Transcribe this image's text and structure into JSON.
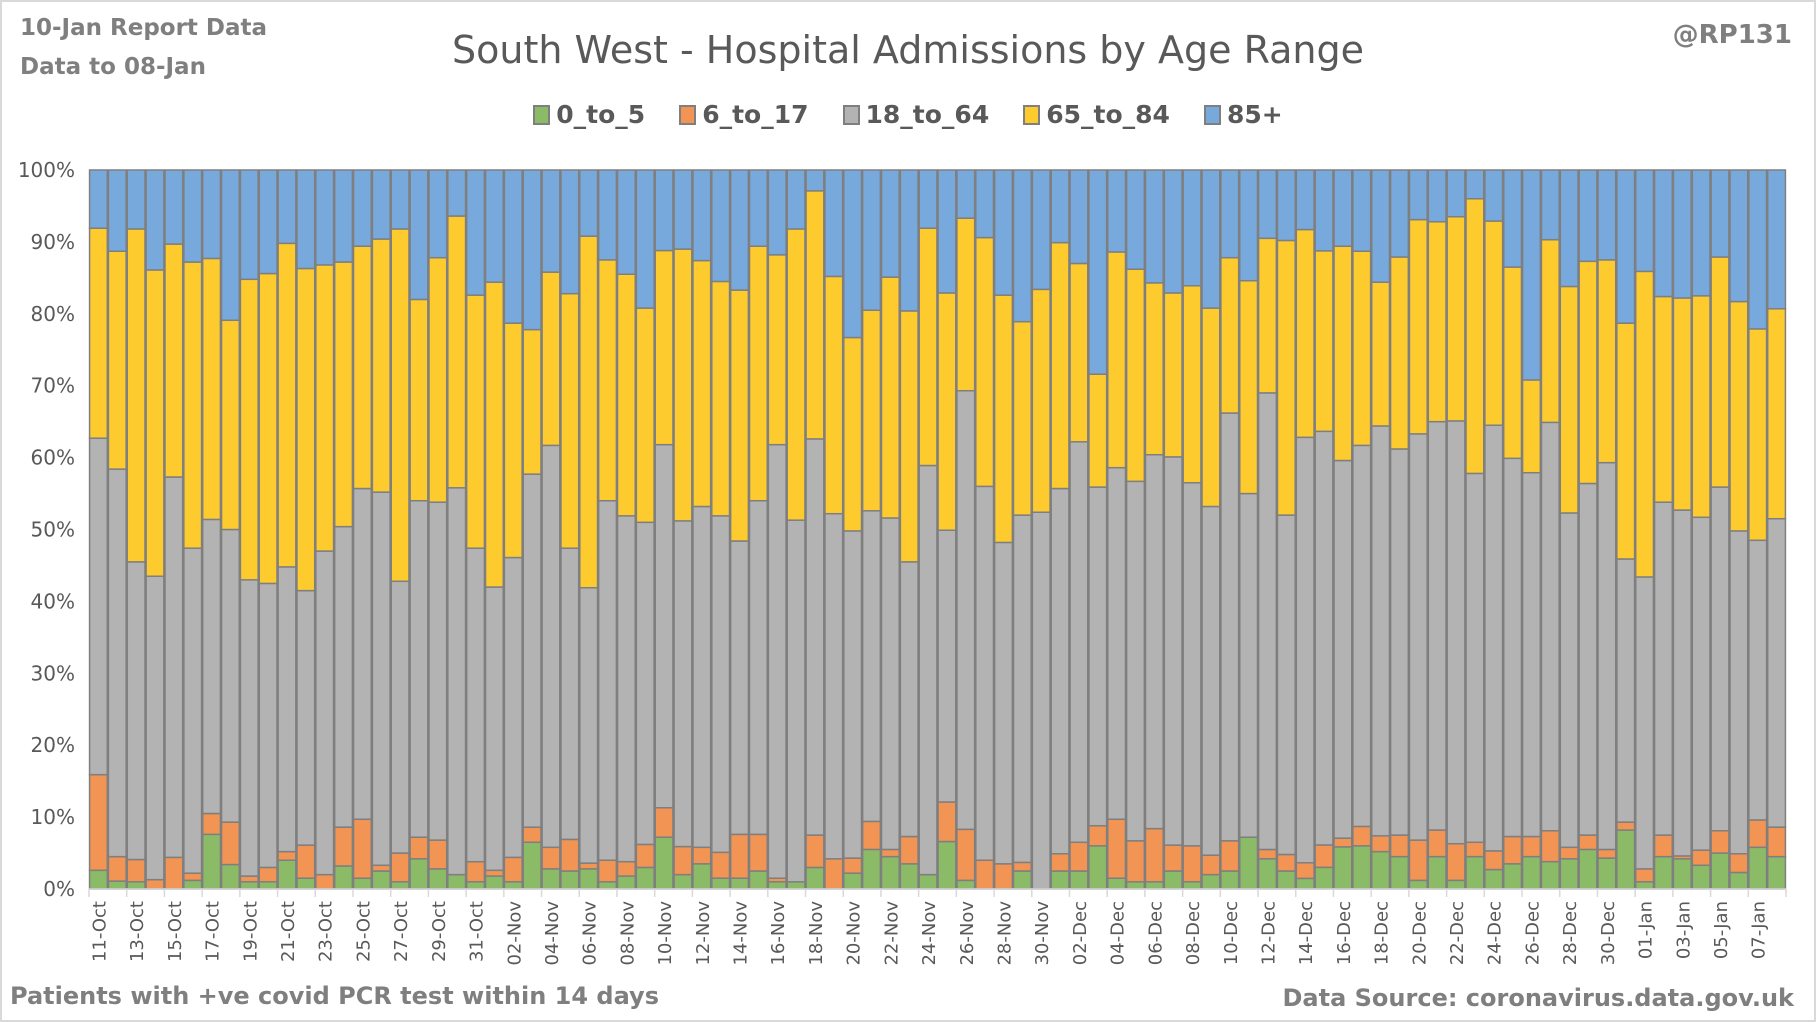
{
  "header": {
    "report_note": "10-Jan Report Data",
    "data_to_note": "Data to 08-Jan",
    "handle": "@RP131"
  },
  "footer": {
    "left_note": "Patients with  +ve covid PCR test within 14 days",
    "source": "Data Source: coronavirus.data.gov.uk"
  },
  "chart_data": {
    "type": "bar",
    "stacked": "percent",
    "title": "South West - Hospital Admissions by Age Range",
    "xlabel": "",
    "ylabel": "",
    "ylim": [
      0,
      100
    ],
    "yticks": [
      "0%",
      "10%",
      "20%",
      "30%",
      "40%",
      "50%",
      "60%",
      "70%",
      "80%",
      "90%",
      "100%"
    ],
    "legend_position": "top",
    "grid": true,
    "categories": [
      "11-Oct",
      "12-Oct",
      "13-Oct",
      "14-Oct",
      "15-Oct",
      "16-Oct",
      "17-Oct",
      "18-Oct",
      "19-Oct",
      "20-Oct",
      "21-Oct",
      "22-Oct",
      "23-Oct",
      "24-Oct",
      "25-Oct",
      "26-Oct",
      "27-Oct",
      "28-Oct",
      "29-Oct",
      "30-Oct",
      "31-Oct",
      "01-Nov",
      "02-Nov",
      "03-Nov",
      "04-Nov",
      "05-Nov",
      "06-Nov",
      "07-Nov",
      "08-Nov",
      "09-Nov",
      "10-Nov",
      "11-Nov",
      "12-Nov",
      "13-Nov",
      "14-Nov",
      "15-Nov",
      "16-Nov",
      "17-Nov",
      "18-Nov",
      "19-Nov",
      "20-Nov",
      "21-Nov",
      "22-Nov",
      "23-Nov",
      "24-Nov",
      "25-Nov",
      "26-Nov",
      "27-Nov",
      "28-Nov",
      "29-Nov",
      "30-Nov",
      "01-Dec",
      "02-Dec",
      "03-Dec",
      "04-Dec",
      "05-Dec",
      "06-Dec",
      "07-Dec",
      "08-Dec",
      "09-Dec",
      "10-Dec",
      "11-Dec",
      "12-Dec",
      "13-Dec",
      "14-Dec",
      "15-Dec",
      "16-Dec",
      "17-Dec",
      "18-Dec",
      "19-Dec",
      "20-Dec",
      "21-Dec",
      "22-Dec",
      "23-Dec",
      "24-Dec",
      "25-Dec",
      "26-Dec",
      "27-Dec",
      "28-Dec",
      "29-Dec",
      "30-Dec",
      "31-Dec",
      "01-Jan",
      "02-Jan",
      "03-Jan",
      "04-Jan",
      "05-Jan",
      "06-Jan",
      "07-Jan",
      "08-Jan"
    ],
    "xtick_labels": [
      "11-Oct",
      "13-Oct",
      "15-Oct",
      "17-Oct",
      "19-Oct",
      "21-Oct",
      "23-Oct",
      "25-Oct",
      "27-Oct",
      "29-Oct",
      "31-Oct",
      "02-Nov",
      "04-Nov",
      "06-Nov",
      "08-Nov",
      "10-Nov",
      "12-Nov",
      "14-Nov",
      "16-Nov",
      "18-Nov",
      "20-Nov",
      "22-Nov",
      "24-Nov",
      "26-Nov",
      "28-Nov",
      "30-Nov",
      "02-Dec",
      "04-Dec",
      "06-Dec",
      "08-Dec",
      "10-Dec",
      "12-Dec",
      "14-Dec",
      "16-Dec",
      "18-Dec",
      "20-Dec",
      "22-Dec",
      "24-Dec",
      "26-Dec",
      "28-Dec",
      "30-Dec",
      "01-Jan",
      "03-Jan",
      "05-Jan",
      "07-Jan"
    ],
    "series": [
      {
        "name": "0_to_5",
        "color": "#8cbb67",
        "values": [
          2.6,
          1.1,
          1.0,
          0,
          0,
          1.2,
          7.6,
          3.4,
          1.0,
          1.0,
          4.0,
          1.5,
          0,
          3.2,
          1.5,
          2.5,
          1.0,
          4.2,
          2.8,
          2.0,
          1.0,
          1.8,
          1.0,
          6.5,
          2.8,
          2.5,
          2.8,
          1.0,
          1.8,
          3.0,
          7.2,
          2.0,
          3.5,
          1.5,
          1.5,
          2.5,
          1.0,
          1.0,
          3.0,
          0,
          2.2,
          5.5,
          4.5,
          3.5,
          2.0,
          6.6,
          1.2,
          0,
          0,
          2.5,
          0,
          2.5,
          2.5,
          6.0,
          1.5,
          1.0,
          1.0,
          2.5,
          1.0,
          2.0,
          2.5,
          7.2,
          4.2,
          2.5,
          1.5,
          3.0,
          5.8,
          6.0,
          5.2,
          4.5,
          1.2,
          4.5,
          1.2,
          4.5,
          2.7,
          3.5,
          4.5,
          3.8,
          4.2,
          5.5,
          4.3,
          8.2,
          1.0,
          4.5,
          4.2,
          3.3,
          5.0,
          2.3,
          5.8,
          4.5
        ]
      },
      {
        "name": "6_to_17",
        "color": "#f29453",
        "values": [
          13.3,
          3.4,
          3.1,
          1.3,
          4.4,
          1.0,
          2.9,
          5.9,
          0.8,
          2.0,
          1.2,
          4.6,
          2.0,
          5.4,
          8.2,
          0.8,
          4.0,
          3.0,
          4.0,
          0,
          2.8,
          0.8,
          3.4,
          2.1,
          3.0,
          4.4,
          0.8,
          3.0,
          2.0,
          3.2,
          4.1,
          3.9,
          2.3,
          3.6,
          6.1,
          5.1,
          0.5,
          0,
          4.5,
          4.2,
          2.1,
          3.9,
          1.0,
          3.8,
          0,
          5.5,
          7.1,
          4.0,
          3.5,
          1.2,
          0,
          2.4,
          4.0,
          2.8,
          8.2,
          5.7,
          7.4,
          3.6,
          5.0,
          2.7,
          4.2,
          0,
          1.3,
          2.3,
          2.2,
          3.1,
          1.2,
          2.7,
          2.2,
          3.0,
          5.6,
          3.7,
          5.1,
          2.0,
          2.6,
          3.8,
          2.8,
          4.3,
          1.6,
          2.0,
          1.2,
          1.1,
          1.8,
          3.0,
          0.4,
          2.1,
          3.1,
          2.6,
          3.8,
          4.1
        ]
      },
      {
        "name": "18_to_64",
        "color": "#b3b3b3",
        "values": [
          46.8,
          53.9,
          41.4,
          42.2,
          52.9,
          45.2,
          40.9,
          40.7,
          41.2,
          39.5,
          39.6,
          35.4,
          45.0,
          41.8,
          46.0,
          51.9,
          37.8,
          46.8,
          47.0,
          53.8,
          43.6,
          39.4,
          41.7,
          49.1,
          55.9,
          40.5,
          38.3,
          50.0,
          48.1,
          44.8,
          50.5,
          45.3,
          47.4,
          46.8,
          40.8,
          46.4,
          60.3,
          50.3,
          55.1,
          48.0,
          45.5,
          43.2,
          46.1,
          38.2,
          56.9,
          37.8,
          61.0,
          52.0,
          44.7,
          48.3,
          52.4,
          50.8,
          55.7,
          47.1,
          48.9,
          50.0,
          52.0,
          54.0,
          50.5,
          48.5,
          59.5,
          47.8,
          63.5,
          47.2,
          60.0,
          57.3,
          52.0,
          53.0,
          57.0,
          53.7,
          56.5,
          56.8,
          58.8,
          51.3,
          59.2,
          52.6,
          50.6,
          56.8,
          46.5,
          48.9,
          53.8,
          36.6,
          40.6,
          46.3,
          48.1,
          46.3,
          47.8,
          44.9,
          38.9,
          42.9
        ]
      },
      {
        "name": "65_to_84",
        "color": "#fecb2f",
        "values": [
          29.2,
          30.3,
          46.3,
          42.6,
          32.4,
          39.8,
          36.3,
          29.1,
          41.8,
          43.1,
          45.0,
          44.8,
          39.8,
          36.8,
          33.7,
          35.2,
          49.0,
          28.0,
          34.0,
          37.8,
          35.2,
          42.4,
          32.6,
          20.1,
          24.1,
          35.4,
          48.9,
          33.5,
          33.6,
          29.8,
          27.0,
          37.8,
          34.2,
          32.6,
          34.9,
          35.4,
          26.4,
          40.5,
          34.5,
          33.0,
          26.9,
          27.9,
          33.5,
          34.9,
          33.0,
          33.0,
          24.0,
          34.6,
          34.4,
          26.9,
          31.0,
          34.2,
          24.8,
          15.7,
          30.0,
          29.5,
          23.9,
          22.8,
          27.4,
          27.6,
          21.6,
          29.6,
          21.5,
          38.2,
          29.3,
          25.0,
          29.5,
          27.0,
          20.0,
          26.7,
          29.8,
          27.8,
          28.4,
          38.2,
          28.4,
          26.6,
          12.9,
          25.4,
          31.5,
          30.9,
          28.2,
          32.8,
          42.5,
          28.6,
          29.5,
          30.8,
          32.0,
          31.9,
          29.4,
          29.2
        ]
      },
      {
        "name": "85+",
        "color": "#77a9dc",
        "values": [
          8.1,
          11.3,
          8.2,
          13.9,
          10.3,
          12.8,
          12.3,
          20.9,
          15.2,
          14.4,
          10.2,
          13.7,
          13.2,
          12.8,
          10.6,
          9.6,
          8.2,
          18.0,
          12.2,
          6.4,
          17.4,
          15.6,
          21.3,
          22.2,
          14.2,
          17.2,
          9.2,
          12.5,
          14.5,
          19.2,
          11.2,
          11.0,
          12.6,
          15.5,
          16.7,
          10.6,
          11.8,
          8.2,
          2.9,
          14.8,
          23.3,
          19.5,
          14.9,
          19.6,
          8.1,
          17.1,
          6.7,
          9.4,
          17.4,
          21.1,
          16.6,
          10.1,
          13.0,
          28.4,
          11.4,
          13.8,
          15.7,
          17.1,
          16.1,
          19.2,
          12.2,
          15.4,
          9.5,
          9.8,
          8.4,
          11.2,
          10.5,
          11.3,
          15.6,
          12.1,
          6.9,
          7.2,
          6.5,
          4.0,
          7.1,
          13.5,
          29.2,
          9.7,
          16.2,
          12.7,
          12.5,
          21.3,
          14.1,
          17.6,
          17.8,
          17.5,
          12.1,
          18.3,
          22.1,
          19.3
        ]
      }
    ]
  }
}
